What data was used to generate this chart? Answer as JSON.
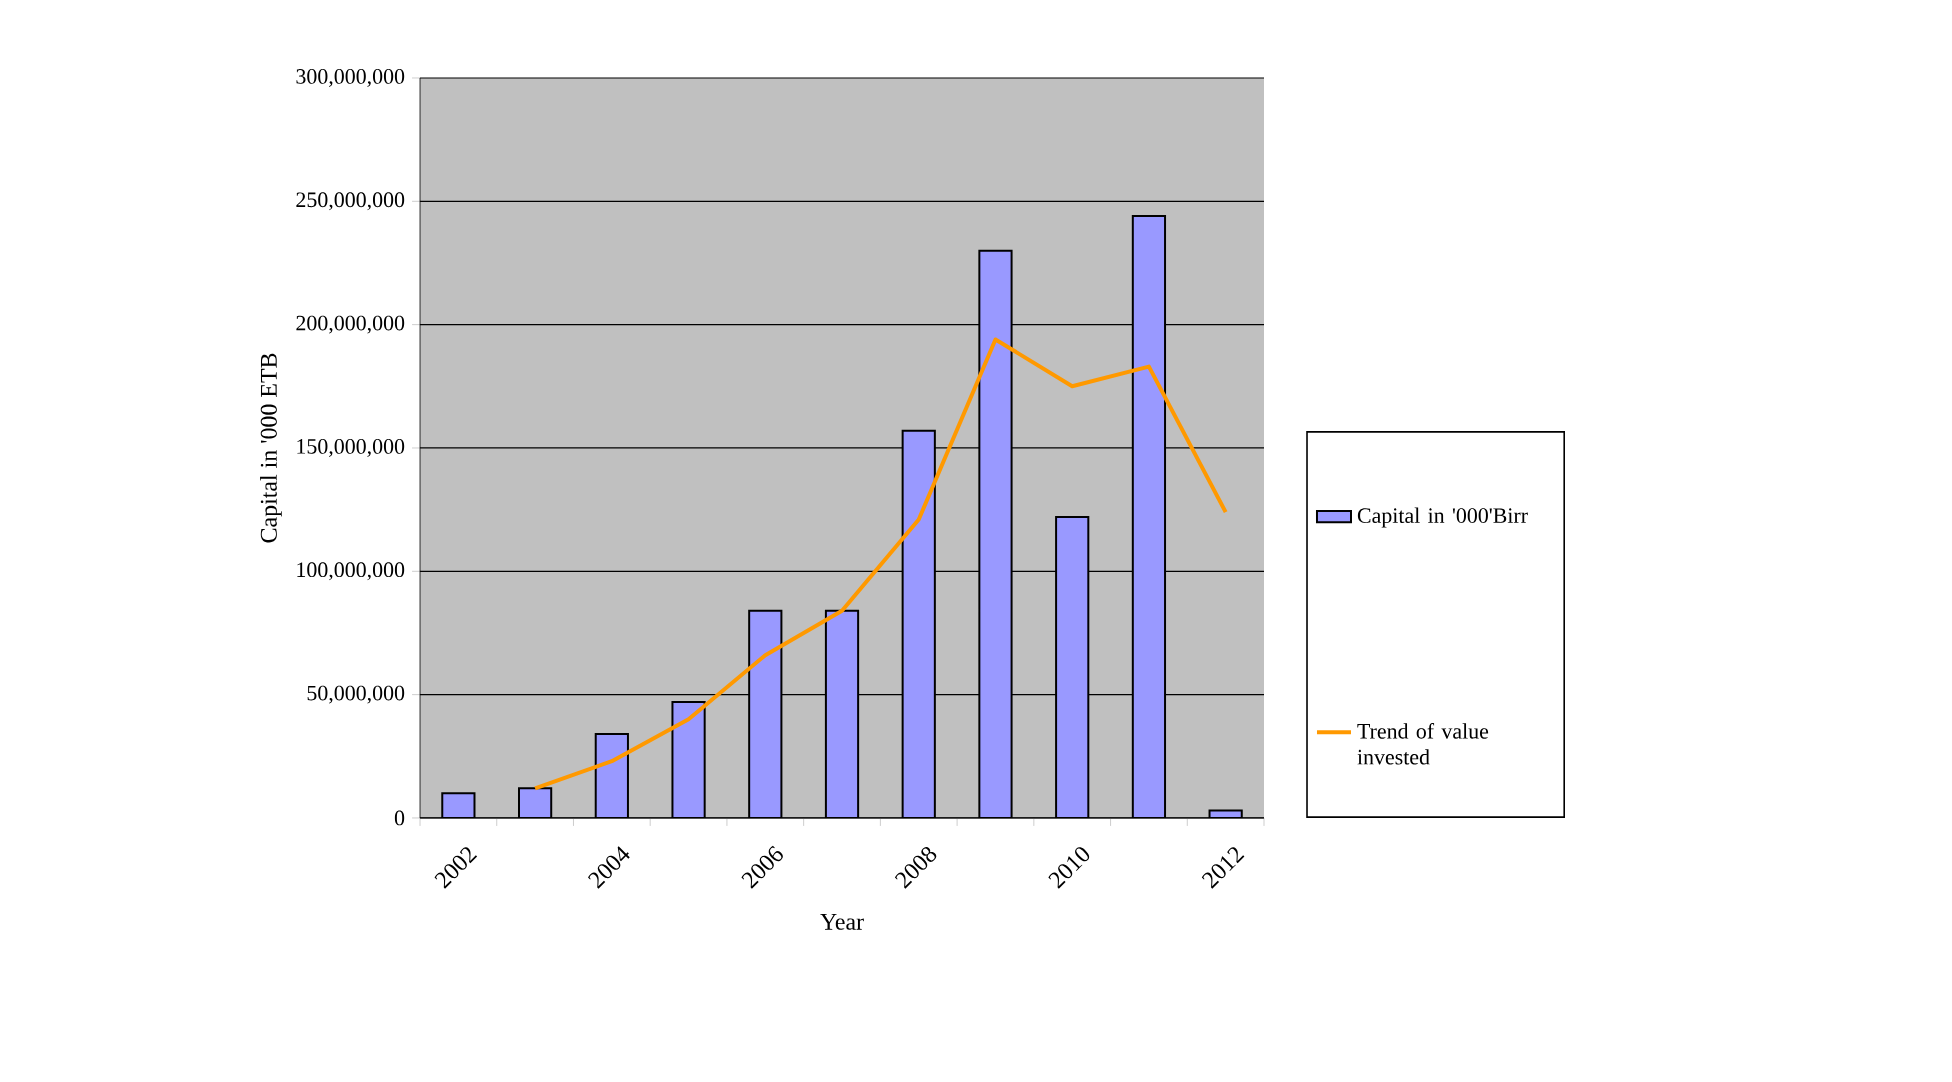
{
  "chart_data": {
    "type": "bar",
    "xlabel": "Year",
    "ylabel": "Capital in '000 ETB",
    "categories": [
      "2002",
      null,
      "2004",
      null,
      "2006",
      null,
      "2008",
      null,
      "2010",
      null,
      "2012"
    ],
    "series": [
      {
        "name": "Capital in '000'Birr",
        "color": "#9999ff",
        "values": [
          10000000,
          12000000,
          34000000,
          47000000,
          84000000,
          84000000,
          157000000,
          230000000,
          122000000,
          244000000,
          3000000
        ]
      },
      {
        "name": "Trend of value invested",
        "type": "line",
        "color": "#ff9900",
        "values": [
          null,
          12000000,
          23000000,
          40000000,
          66000000,
          84000000,
          121000000,
          194000000,
          175000000,
          183000000,
          124000000
        ]
      }
    ],
    "ylim": [
      0,
      300000000
    ],
    "yticks": [
      0,
      {
        "value": 50000000,
        "label": "50,000,000"
      },
      {
        "value": 100000000,
        "label": "100,000,000"
      },
      {
        "value": 150000000,
        "label": "150,000,000"
      },
      {
        "value": 200000000,
        "label": "200,000,000"
      },
      {
        "value": 250000000,
        "label": "250,000,000"
      },
      {
        "value": 300000000,
        "label": "300,000,000"
      }
    ],
    "grid": "y",
    "legend": "right"
  }
}
